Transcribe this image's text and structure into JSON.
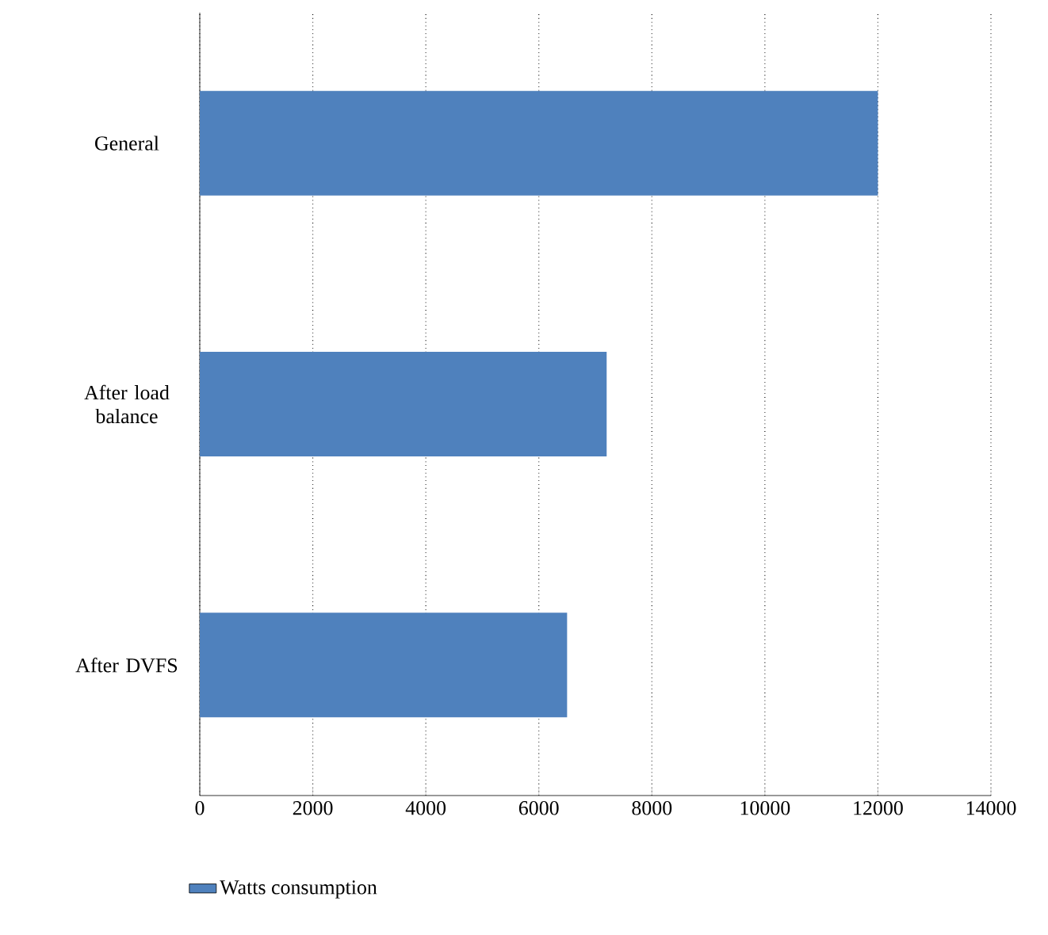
{
  "chart_data": {
    "type": "bar",
    "orientation": "horizontal",
    "categories": [
      "General",
      "After load balance",
      "After DVFS"
    ],
    "series": [
      {
        "name": "Watts consumption",
        "color": "#4f81bd",
        "values": [
          12000,
          7200,
          6500
        ]
      }
    ],
    "xlim": [
      0,
      14000
    ],
    "xticks": [
      0,
      2000,
      4000,
      6000,
      8000,
      10000,
      12000,
      14000
    ],
    "grid": "x",
    "legend": "bottom left"
  }
}
